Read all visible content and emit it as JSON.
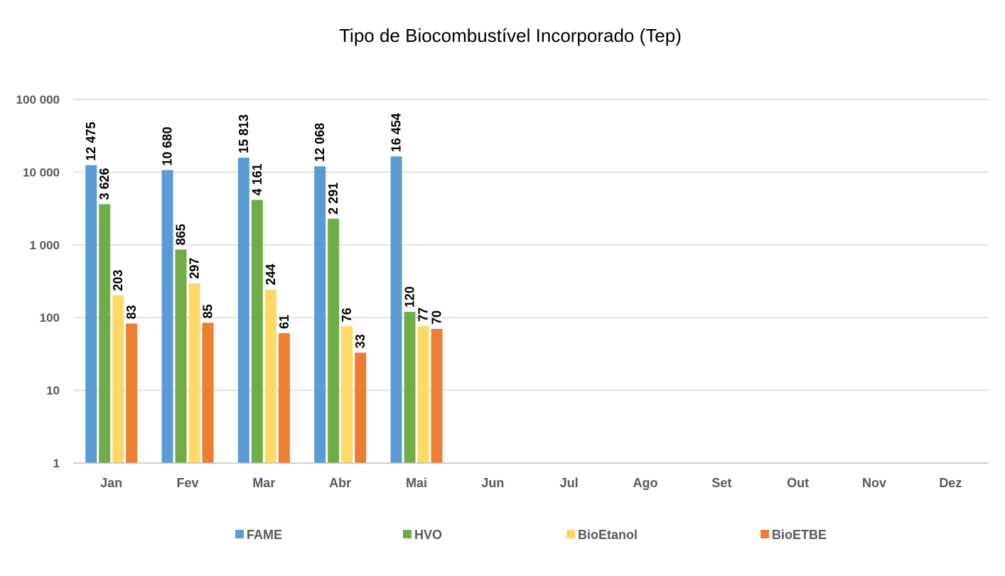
{
  "chart_data": {
    "type": "bar",
    "title": "Tipo de Biocombustível Incorporado (Tep)",
    "y_scale": "log",
    "ylim": [
      1,
      100000
    ],
    "y_ticks": [
      1,
      10,
      100,
      1000,
      10000,
      100000
    ],
    "y_tick_labels": [
      "1",
      "10",
      "100",
      "1 000",
      "10 000",
      "100 000"
    ],
    "grid": true,
    "legend_position": "bottom",
    "categories": [
      "Jan",
      "Fev",
      "Mar",
      "Abr",
      "Mai",
      "Jun",
      "Jul",
      "Ago",
      "Set",
      "Out",
      "Nov",
      "Dez"
    ],
    "series": [
      {
        "name": "FAME",
        "color": "#5b9bd5",
        "values": [
          12475,
          10680,
          15813,
          12068,
          16454,
          null,
          null,
          null,
          null,
          null,
          null,
          null
        ],
        "labels": [
          "12 475",
          "10 680",
          "15 813",
          "12 068",
          "16 454",
          null,
          null,
          null,
          null,
          null,
          null,
          null
        ]
      },
      {
        "name": "HVO",
        "color": "#70ad47",
        "values": [
          3626,
          865,
          4161,
          2291,
          120,
          null,
          null,
          null,
          null,
          null,
          null,
          null
        ],
        "labels": [
          "3 626",
          "865",
          "4 161",
          "2 291",
          "120",
          null,
          null,
          null,
          null,
          null,
          null,
          null
        ]
      },
      {
        "name": "BioEtanol",
        "color": "#ffd966",
        "values": [
          203,
          297,
          244,
          76,
          77,
          null,
          null,
          null,
          null,
          null,
          null,
          null
        ],
        "labels": [
          "203",
          "297",
          "244",
          "76",
          "77",
          null,
          null,
          null,
          null,
          null,
          null,
          null
        ]
      },
      {
        "name": "BioETBE",
        "color": "#ed7d31",
        "values": [
          83,
          85,
          61,
          33,
          70,
          null,
          null,
          null,
          null,
          null,
          null,
          null
        ],
        "labels": [
          "83",
          "85",
          "61",
          "33",
          "70",
          null,
          null,
          null,
          null,
          null,
          null,
          null
        ]
      }
    ]
  }
}
